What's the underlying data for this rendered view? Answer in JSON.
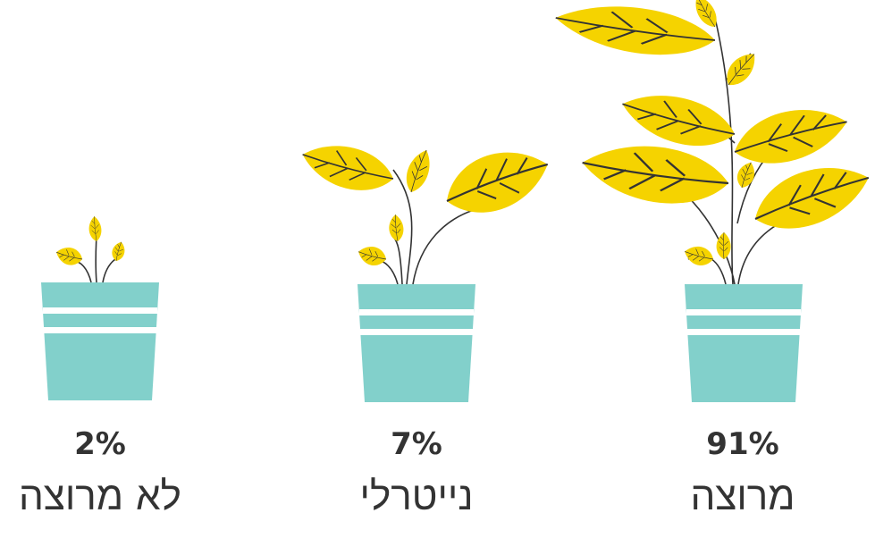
{
  "items": [
    {
      "percent": "91%",
      "label": "מרוצה"
    },
    {
      "percent": "7%",
      "label": "נייטרלי"
    },
    {
      "percent": "2%",
      "label": "לא מרוצה"
    }
  ]
}
